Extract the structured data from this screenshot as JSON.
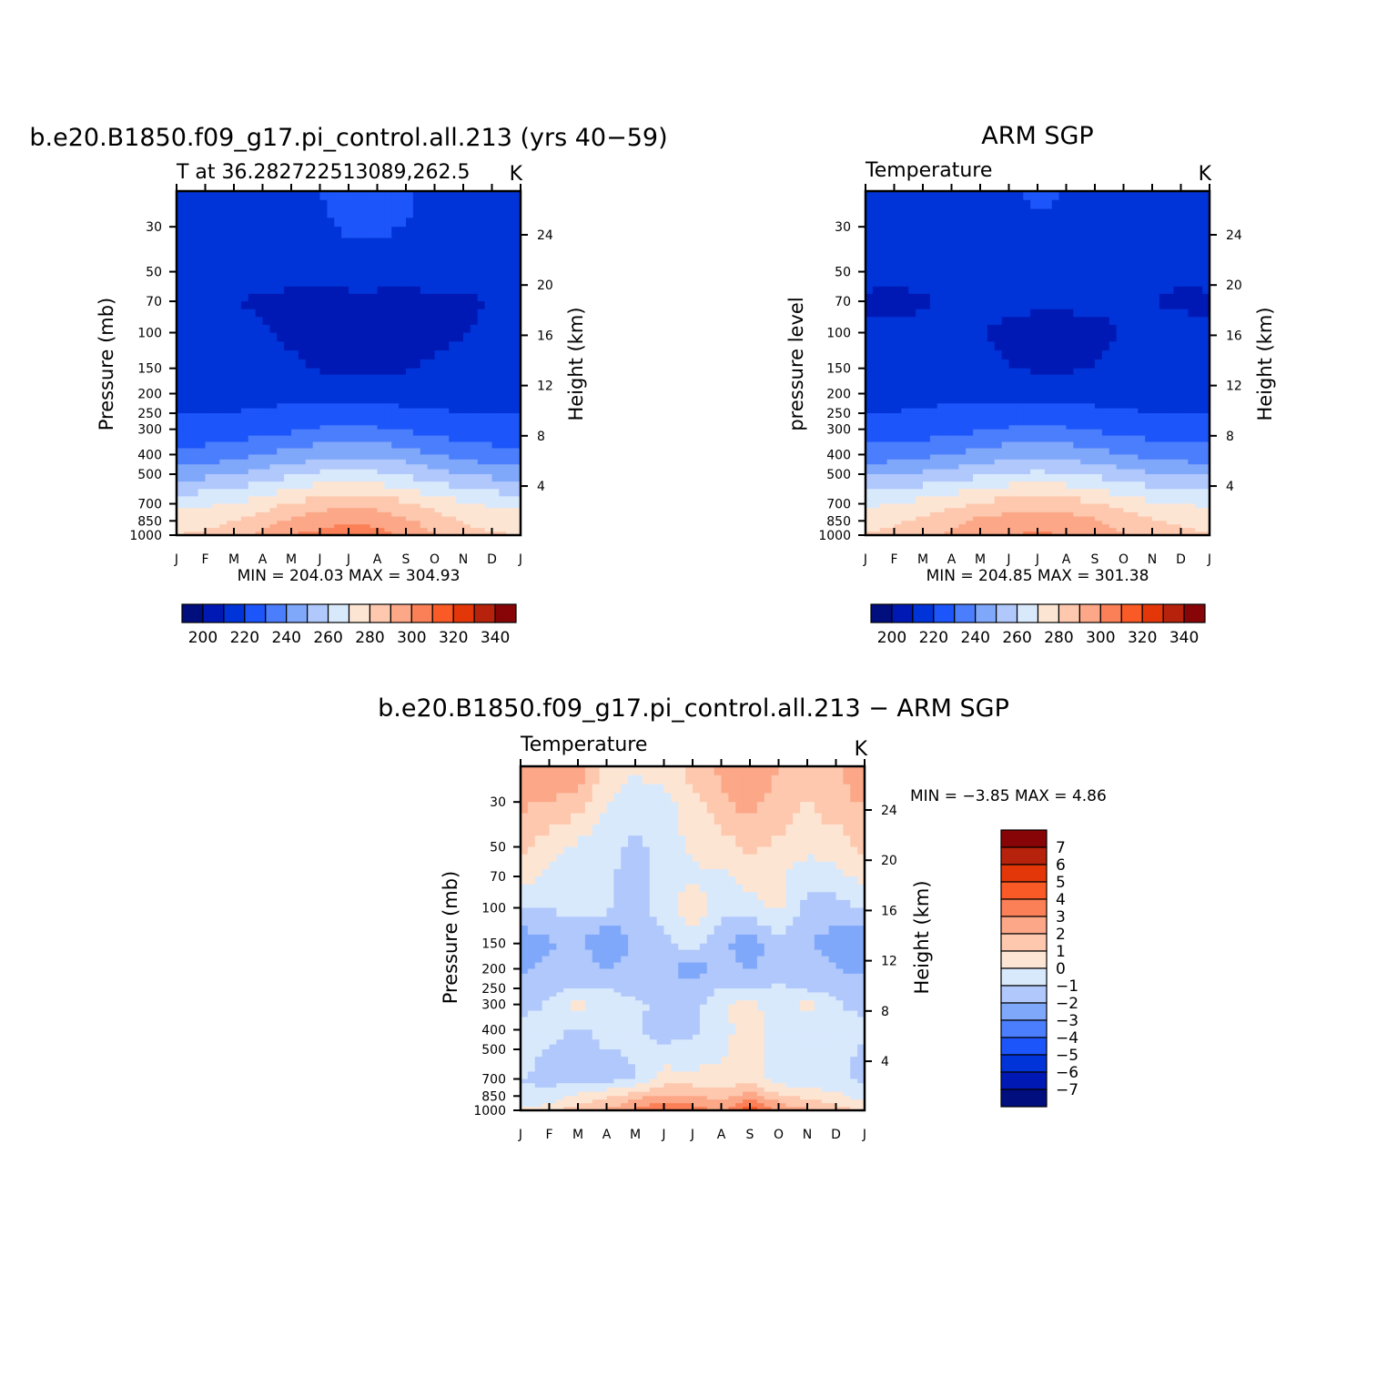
{
  "palette": {
    "temperature": [
      "#000e7e",
      "#0019b4",
      "#0034d8",
      "#1c55fa",
      "#4b7efc",
      "#80a8fa",
      "#b0c8fb",
      "#d9e9fc",
      "#fde5d3",
      "#fdc8ae",
      "#fca787",
      "#fb8057",
      "#fa5a25",
      "#e33709",
      "#b6220c",
      "#880507"
    ],
    "difference": [
      "#880507",
      "#b6220c",
      "#e33709",
      "#fa5a25",
      "#fb8057",
      "#fca787",
      "#fdc8ae",
      "#fde5d3",
      "#d9e9fc",
      "#b0c8fb",
      "#80a8fa",
      "#4b7efc",
      "#1c55fa",
      "#0034d8",
      "#0019b4",
      "#000e7e"
    ]
  },
  "chart_data": [
    {
      "type": "heatmap",
      "title": "b.e20.B1850.f09_g17.pi_control.all.213 (yrs 40−59)",
      "subtitle": "T at 36.282722513089,262.5",
      "units": "K",
      "ylabel": "Pressure (mb)",
      "ylabel_right": "Height (km)",
      "months": [
        "J",
        "F",
        "M",
        "A",
        "M",
        "J",
        "J",
        "A",
        "S",
        "O",
        "N",
        "D",
        "J"
      ],
      "pressure_ticks": [
        30,
        50,
        70,
        100,
        150,
        200,
        250,
        300,
        400,
        500,
        700,
        850,
        1000
      ],
      "height_ticks": [
        24,
        20,
        16,
        12,
        8,
        4
      ],
      "levels": [
        200,
        210,
        220,
        230,
        240,
        250,
        260,
        270,
        280,
        290,
        300,
        310,
        320,
        330,
        340
      ],
      "colorbar_labels": [
        200,
        220,
        240,
        260,
        280,
        300,
        320,
        340
      ],
      "min_text": "MIN = 204.03 MAX = 304.93",
      "pressure_grid": [
        20,
        30,
        50,
        70,
        100,
        150,
        200,
        250,
        300,
        400,
        500,
        700,
        850,
        1000
      ],
      "values": [
        [
          214,
          214,
          215,
          216,
          218,
          220,
          222,
          223,
          221,
          218,
          215,
          214,
          214
        ],
        [
          215,
          215,
          215,
          216,
          217,
          219,
          221,
          222,
          220,
          218,
          216,
          215,
          215
        ],
        [
          213,
          213,
          213,
          213,
          213,
          214,
          215,
          215,
          214,
          214,
          213,
          213,
          213
        ],
        [
          211,
          211,
          210,
          209,
          208,
          207,
          207,
          207,
          207,
          208,
          209,
          210,
          211
        ],
        [
          214,
          214,
          213,
          211,
          208,
          206,
          205,
          205,
          205,
          206,
          209,
          212,
          214
        ],
        [
          217,
          217,
          216,
          215,
          212,
          209,
          208,
          208,
          209,
          212,
          215,
          216,
          217
        ],
        [
          218,
          218,
          218,
          218,
          217,
          216,
          216,
          216,
          216,
          217,
          217,
          218,
          218
        ],
        [
          220,
          220,
          220,
          221,
          222,
          224,
          225,
          224,
          222,
          221,
          220,
          220,
          220
        ],
        [
          223,
          223,
          224,
          226,
          228,
          231,
          232,
          231,
          229,
          226,
          224,
          223,
          223
        ],
        [
          234,
          234,
          236,
          240,
          243,
          246,
          248,
          247,
          244,
          240,
          236,
          234,
          234
        ],
        [
          247,
          247,
          250,
          254,
          258,
          262,
          263,
          262,
          259,
          254,
          250,
          247,
          247
        ],
        [
          267,
          268,
          271,
          275,
          281,
          285,
          287,
          286,
          282,
          276,
          271,
          268,
          267
        ],
        [
          275,
          276,
          280,
          285,
          292,
          296,
          299,
          297,
          292,
          285,
          279,
          276,
          275
        ],
        [
          280,
          282,
          286,
          292,
          300,
          303,
          305,
          303,
          298,
          291,
          285,
          281,
          280
        ]
      ]
    },
    {
      "type": "heatmap",
      "title": "ARM SGP",
      "subtitle": "Temperature",
      "units": "K",
      "ylabel": "pressure level",
      "ylabel_right": "Height (km)",
      "months": [
        "J",
        "F",
        "M",
        "A",
        "M",
        "J",
        "J",
        "A",
        "S",
        "O",
        "N",
        "D",
        "J"
      ],
      "pressure_ticks": [
        30,
        50,
        70,
        100,
        150,
        200,
        250,
        300,
        400,
        500,
        700,
        850,
        1000
      ],
      "height_ticks": [
        24,
        20,
        16,
        12,
        8,
        4
      ],
      "levels": [
        200,
        210,
        220,
        230,
        240,
        250,
        260,
        270,
        280,
        290,
        300,
        310,
        320,
        330,
        340
      ],
      "colorbar_labels": [
        200,
        220,
        240,
        260,
        280,
        300,
        320,
        340
      ],
      "min_text": "MIN = 204.85 MAX = 301.38",
      "pressure_grid": [
        20,
        30,
        50,
        70,
        100,
        150,
        200,
        250,
        300,
        400,
        500,
        700,
        850,
        1000
      ],
      "values": [
        [
          214,
          214,
          215,
          216,
          218,
          219,
          221,
          220,
          219,
          217,
          215,
          214,
          214
        ],
        [
          213,
          213,
          214,
          215,
          216,
          218,
          219,
          219,
          218,
          216,
          214,
          213,
          213
        ],
        [
          212,
          212,
          213,
          213,
          213,
          213,
          214,
          214,
          213,
          213,
          212,
          211,
          212
        ],
        [
          209,
          208,
          209,
          212,
          212,
          211,
          211,
          211,
          211,
          211,
          210,
          209,
          209
        ],
        [
          211,
          212,
          212,
          211,
          210,
          209,
          208,
          208,
          209,
          210,
          211,
          212,
          211
        ],
        [
          215,
          215,
          215,
          214,
          212,
          210,
          209,
          209,
          210,
          212,
          214,
          215,
          215
        ],
        [
          218,
          218,
          218,
          217,
          216,
          215,
          215,
          215,
          215,
          216,
          217,
          218,
          218
        ],
        [
          220,
          220,
          221,
          222,
          223,
          224,
          225,
          224,
          223,
          221,
          220,
          220,
          220
        ],
        [
          224,
          224,
          225,
          227,
          229,
          231,
          232,
          231,
          229,
          227,
          225,
          224,
          224
        ],
        [
          234,
          235,
          237,
          240,
          243,
          246,
          247,
          246,
          243,
          240,
          237,
          235,
          234
        ],
        [
          248,
          249,
          252,
          255,
          258,
          261,
          262,
          261,
          258,
          254,
          251,
          249,
          248
        ],
        [
          268,
          270,
          273,
          277,
          281,
          285,
          286,
          285,
          281,
          277,
          272,
          270,
          268
        ],
        [
          276,
          278,
          282,
          287,
          292,
          295,
          297,
          295,
          291,
          286,
          281,
          278,
          276
        ],
        [
          281,
          283,
          287,
          292,
          297,
          300,
          301,
          300,
          296,
          291,
          286,
          283,
          281
        ]
      ]
    },
    {
      "type": "heatmap",
      "title": "b.e20.B1850.f09_g17.pi_control.all.213 − ARM SGP",
      "subtitle": "Temperature",
      "units": "K",
      "ylabel": "Pressure (mb)",
      "ylabel_right": "Height (km)",
      "months": [
        "J",
        "F",
        "M",
        "A",
        "M",
        "J",
        "J",
        "A",
        "S",
        "O",
        "N",
        "D",
        "J"
      ],
      "pressure_ticks": [
        30,
        50,
        70,
        100,
        150,
        200,
        250,
        300,
        400,
        500,
        700,
        850,
        1000
      ],
      "height_ticks": [
        24,
        20,
        16,
        12,
        8,
        4
      ],
      "levels": [
        -7,
        -6,
        -5,
        -4,
        -3,
        -2,
        -1,
        0,
        1,
        2,
        3,
        4,
        5,
        6,
        7
      ],
      "colorbar_labels": [
        7,
        6,
        5,
        4,
        3,
        2,
        1,
        0,
        -1,
        -2,
        -3,
        -4,
        -5,
        -6,
        -7
      ],
      "min_text": "MIN = −3.85 MAX = 4.86",
      "pressure_grid": [
        20,
        30,
        50,
        70,
        100,
        150,
        200,
        250,
        300,
        400,
        500,
        700,
        850,
        1000
      ],
      "values": [
        [
          3.0,
          2.5,
          2.8,
          0.5,
          0.2,
          0.4,
          1.5,
          2.2,
          3.2,
          2.0,
          1.5,
          1.8,
          3.0
        ],
        [
          2.2,
          2.0,
          1.5,
          0.1,
          -0.5,
          -0.3,
          0.5,
          1.8,
          2.5,
          1.5,
          1.0,
          1.6,
          2.2
        ],
        [
          1.2,
          0.4,
          -0.2,
          -0.6,
          -1.2,
          -0.6,
          0.2,
          0.6,
          1.2,
          0.8,
          0.3,
          0.5,
          1.2
        ],
        [
          0.4,
          -0.2,
          -0.5,
          -0.8,
          -1.6,
          -0.5,
          -0.2,
          -0.2,
          0.4,
          0.2,
          -0.6,
          -0.3,
          0.4
        ],
        [
          -0.8,
          -0.9,
          -0.6,
          -0.7,
          -1.5,
          -0.4,
          0.6,
          -0.6,
          -0.4,
          0.3,
          -1.4,
          -1.5,
          -0.8
        ],
        [
          -2.8,
          -2.2,
          -1.6,
          -3.2,
          -1.8,
          -1.3,
          -0.4,
          -1.8,
          -2.5,
          -1.6,
          -2.0,
          -2.4,
          -2.8
        ],
        [
          -2.3,
          -1.5,
          -1.3,
          -2.0,
          -1.6,
          -1.6,
          -2.8,
          -1.6,
          -2.1,
          -1.4,
          -1.5,
          -2.0,
          -2.3
        ],
        [
          -1.2,
          -1.3,
          -1.0,
          -1.0,
          -1.3,
          -1.3,
          -1.5,
          -1.0,
          -1.1,
          -0.8,
          -1.2,
          -1.3,
          -1.2
        ],
        [
          -1.5,
          -0.8,
          0.5,
          -0.6,
          -0.8,
          -1.3,
          -1.4,
          -0.3,
          0.6,
          -1.2,
          0.5,
          -0.8,
          -1.5
        ],
        [
          -0.5,
          -0.7,
          -1.2,
          -0.6,
          -0.8,
          -1.4,
          -1.2,
          -0.5,
          0.8,
          -1.0,
          -0.6,
          -0.7,
          -0.5
        ],
        [
          -0.6,
          -1.1,
          -1.3,
          -1.0,
          -0.9,
          -0.8,
          -0.8,
          -0.2,
          0.5,
          -0.8,
          -0.7,
          -0.6,
          -1.2
        ],
        [
          -1.0,
          -1.3,
          -1.5,
          -1.4,
          -1.1,
          0.5,
          0.4,
          0.3,
          0.4,
          -0.6,
          -0.6,
          -0.7,
          -1.3
        ],
        [
          -0.8,
          -0.7,
          0.3,
          0.8,
          1.5,
          2.2,
          2.0,
          1.6,
          2.6,
          1.2,
          0.6,
          0.2,
          -0.5
        ],
        [
          0.2,
          0.5,
          1.6,
          2.0,
          3.4,
          4.2,
          3.6,
          2.6,
          4.8,
          2.8,
          2.2,
          1.5,
          0.6
        ]
      ]
    }
  ]
}
